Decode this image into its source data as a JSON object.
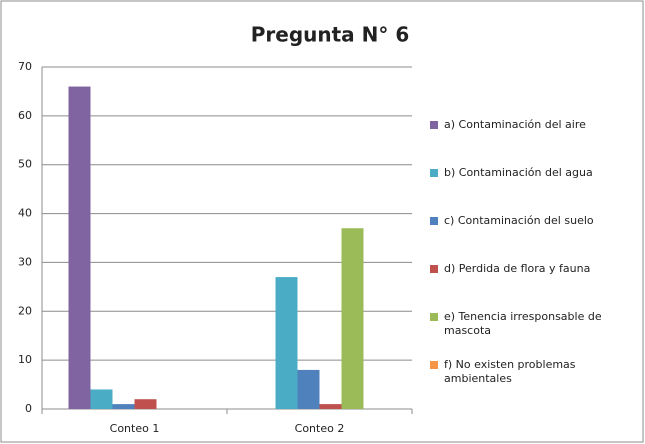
{
  "chart_data": {
    "type": "bar",
    "title": "Pregunta N° 6",
    "categories": [
      "Conteo 1",
      "Conteo 2"
    ],
    "series": [
      {
        "name": "a) Contaminación del aire",
        "color": "#8064a2",
        "values": [
          66,
          0
        ]
      },
      {
        "name": "b) Contaminación del agua",
        "color": "#4bacc6",
        "values": [
          4,
          27
        ]
      },
      {
        "name": "c) Contaminación del suelo",
        "color": "#4f81bd",
        "values": [
          1,
          8
        ]
      },
      {
        "name": "d) Perdida de flora y fauna",
        "color": "#c0504d",
        "values": [
          2,
          1
        ]
      },
      {
        "name": "e) Tenencia irresponsable de mascota",
        "color": "#9bbb59",
        "values": [
          0,
          37
        ]
      },
      {
        "name": "f) No existen problemas ambientales",
        "color": "#f79646",
        "values": [
          0,
          0
        ]
      }
    ],
    "ylim": [
      0,
      70
    ],
    "yticks": [
      0,
      10,
      20,
      30,
      40,
      50,
      60,
      70
    ],
    "grid": true,
    "legend": "right"
  }
}
